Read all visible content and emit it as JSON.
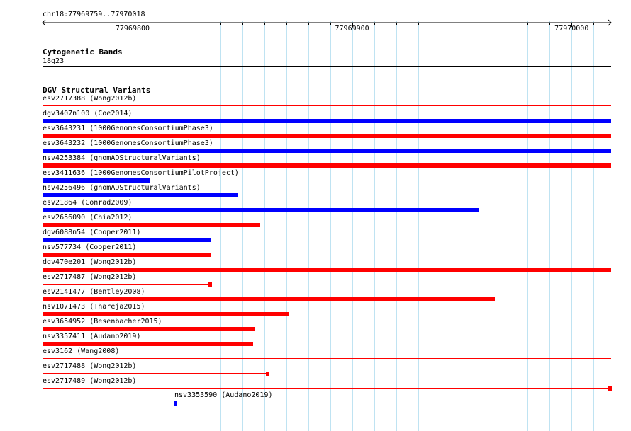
{
  "ruler": {
    "location": "chr18:77969759..77970018",
    "start": 77969759,
    "end": 77970018,
    "ticks": [
      {
        "pos": 77969800,
        "label": "77969800"
      },
      {
        "pos": 77969900,
        "label": "77969900"
      },
      {
        "pos": 77970000,
        "label": "77970000"
      }
    ]
  },
  "cytoband_track": {
    "title": "Cytogenetic Bands",
    "band": "18q23"
  },
  "dgv_track": {
    "title": "DGV Structural Variants",
    "features": [
      {
        "id": "esv2717388",
        "label": "esv2717388 (Wong2012b)",
        "color": "#ff0000",
        "style": "line",
        "start": 77969759,
        "end": 77970018
      },
      {
        "id": "dgv3407n100",
        "label": "dgv3407n100 (Coe2014)",
        "color": "#0000ff",
        "style": "bar",
        "start": 77969759,
        "end": 77970018
      },
      {
        "id": "esv3643231",
        "label": "esv3643231 (1000GenomesConsortiumPhase3)",
        "color": "#ff0000",
        "style": "bar",
        "start": 77969759,
        "end": 77970018
      },
      {
        "id": "esv3643232",
        "label": "esv3643232 (1000GenomesConsortiumPhase3)",
        "color": "#0000ff",
        "style": "bar",
        "start": 77969759,
        "end": 77970018
      },
      {
        "id": "nsv4253384",
        "label": "nsv4253384 (gnomADStructuralVariants)",
        "color": "#ff0000",
        "style": "bar",
        "start": 77969759,
        "end": 77970018
      },
      {
        "id": "esv3411636",
        "label": "esv3411636 (1000GenomesConsortiumPilotProject)",
        "color": "#0000ff",
        "style": "barline",
        "start": 77969759,
        "end": 77970018,
        "thick_end": 77969808
      },
      {
        "id": "nsv4256496",
        "label": "nsv4256496 (gnomADStructuralVariants)",
        "color": "#0000ff",
        "style": "bar",
        "start": 77969759,
        "end": 77969848
      },
      {
        "id": "esv21864",
        "label": "esv21864 (Conrad2009)",
        "color": "#0000ff",
        "style": "bar",
        "start": 77969759,
        "end": 77969958
      },
      {
        "id": "esv2656090",
        "label": "esv2656090 (Chia2012)",
        "color": "#ff0000",
        "style": "bar",
        "start": 77969759,
        "end": 77969858
      },
      {
        "id": "dgv6088n54",
        "label": "dgv6088n54 (Cooper2011)",
        "color": "#0000ff",
        "style": "bar",
        "start": 77969759,
        "end": 77969836
      },
      {
        "id": "nsv577734",
        "label": "nsv577734 (Cooper2011)",
        "color": "#ff0000",
        "style": "bar",
        "start": 77969759,
        "end": 77969836
      },
      {
        "id": "dgv470e201",
        "label": "dgv470e201 (Wong2012b)",
        "color": "#ff0000",
        "style": "bar",
        "start": 77969759,
        "end": 77970018
      },
      {
        "id": "esv2717487",
        "label": "esv2717487 (Wong2012b)",
        "color": "#ff0000",
        "style": "line-endbox",
        "start": 77969759,
        "end": 77969836
      },
      {
        "id": "esv2141477",
        "label": "esv2141477 (Bentley2008)",
        "color": "#ff0000",
        "style": "barline",
        "start": 77969759,
        "end": 77970018,
        "thick_end": 77969965
      },
      {
        "id": "nsv1071473",
        "label": "nsv1071473 (Thareja2015)",
        "color": "#ff0000",
        "style": "bar",
        "start": 77969759,
        "end": 77969871
      },
      {
        "id": "esv3654952",
        "label": "esv3654952 (Besenbacher2015)",
        "color": "#ff0000",
        "style": "bar",
        "start": 77969759,
        "end": 77969856
      },
      {
        "id": "nsv3357411",
        "label": "nsv3357411 (Audano2019)",
        "color": "#ff0000",
        "style": "bar",
        "start": 77969759,
        "end": 77969855
      },
      {
        "id": "esv3162",
        "label": "esv3162 (Wang2008)",
        "color": "#ff0000",
        "style": "line",
        "start": 77969759,
        "end": 77970018
      },
      {
        "id": "esv2717488",
        "label": "esv2717488 (Wong2012b)",
        "color": "#ff0000",
        "style": "line-endbox",
        "start": 77969759,
        "end": 77969862
      },
      {
        "id": "esv2717489",
        "label": "esv2717489 (Wong2012b)",
        "color": "#ff0000",
        "style": "line-endbox",
        "start": 77969759,
        "end": 77970018
      },
      {
        "id": "nsv3353590",
        "label": "nsv3353590 (Audano2019)",
        "color": "#0000ff",
        "style": "point",
        "start": 77969819,
        "end": 77969820
      }
    ]
  }
}
